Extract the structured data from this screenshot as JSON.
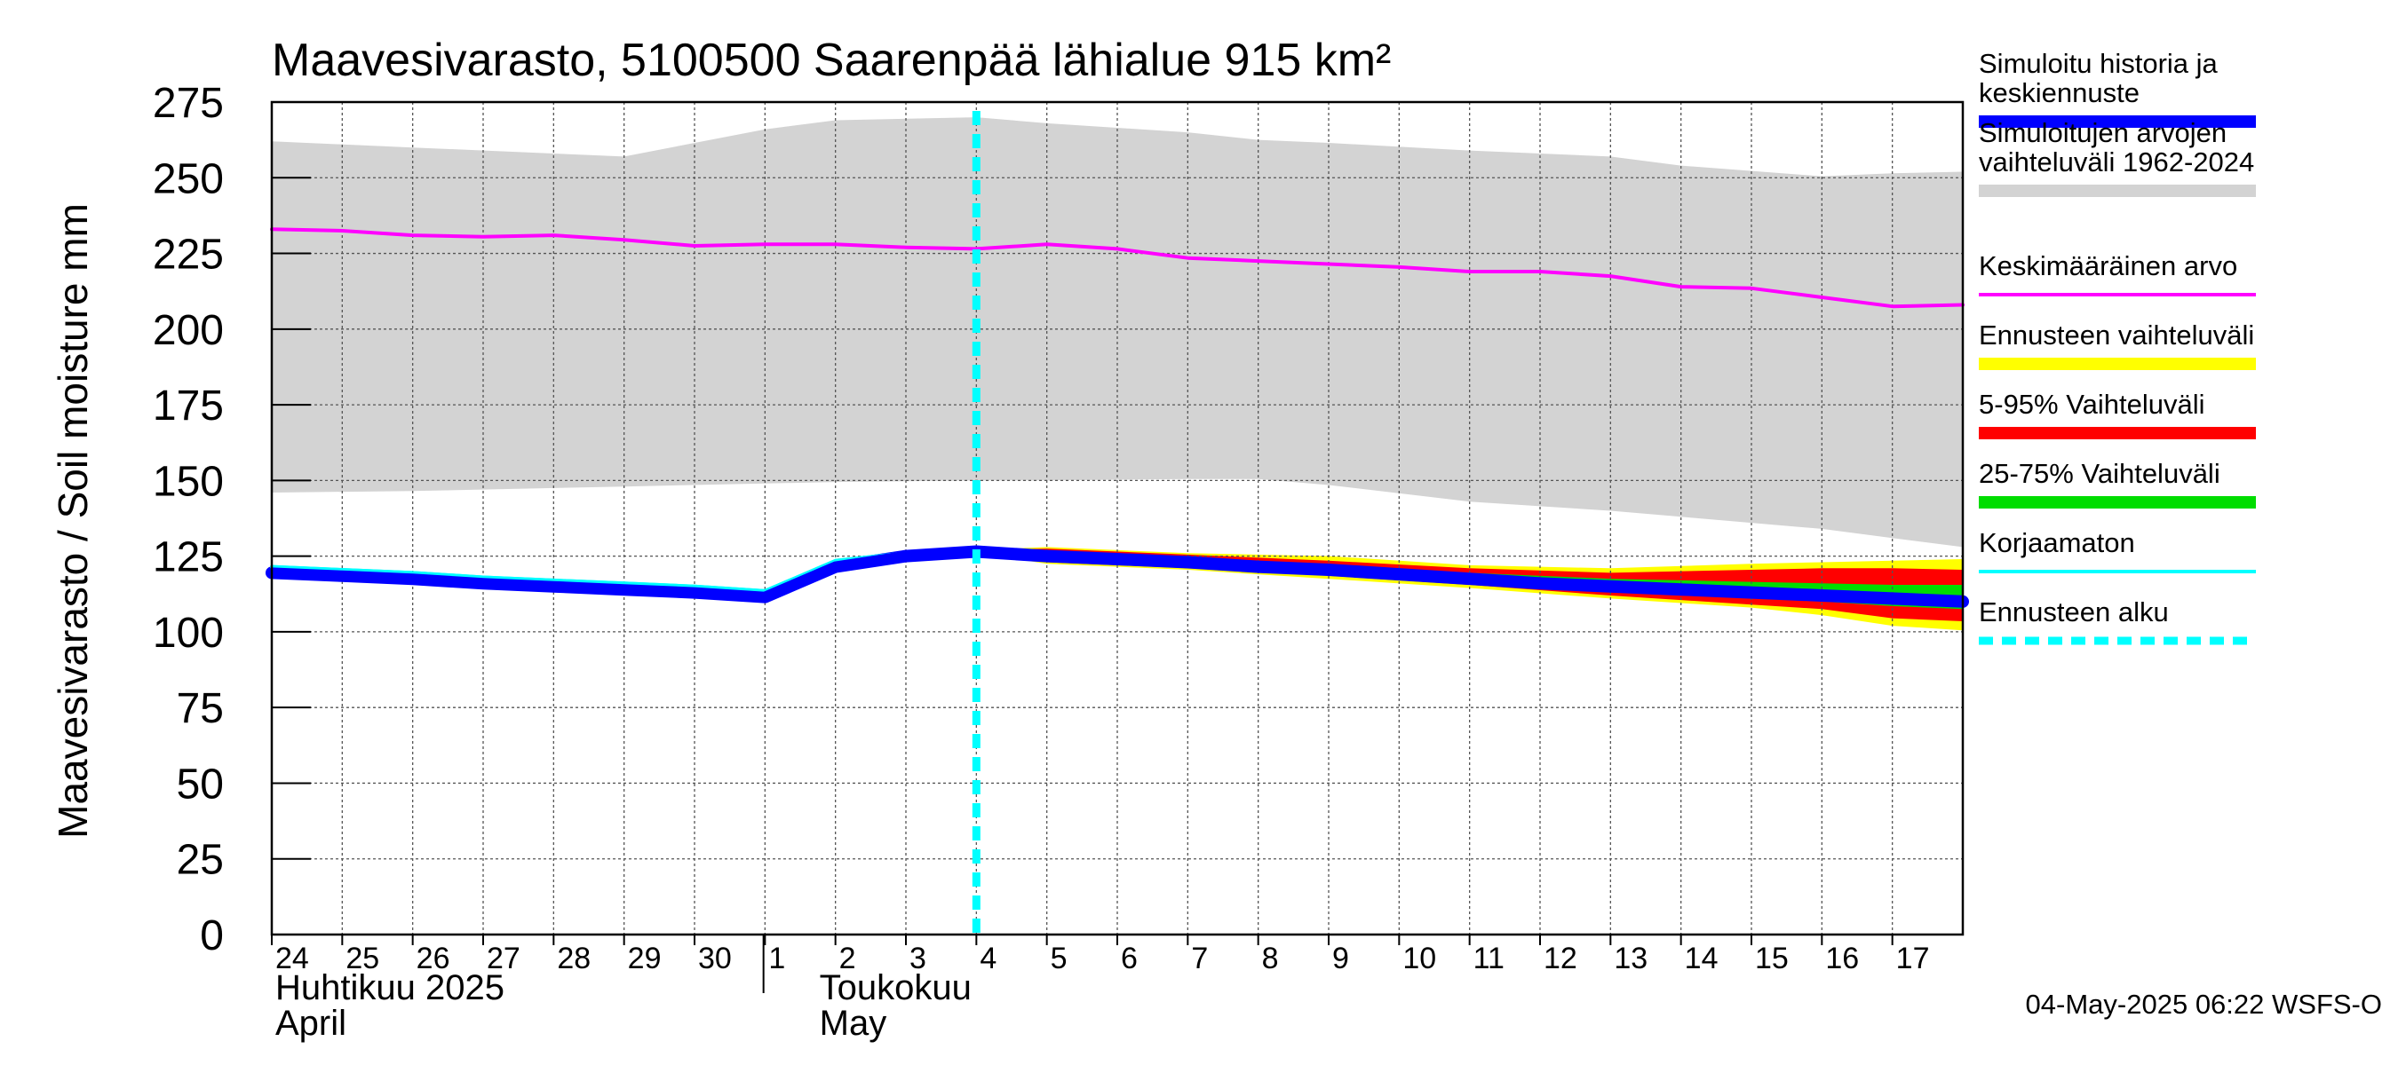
{
  "chart_data": {
    "type": "line",
    "title": "Maavesivarasto, 5100500 Saarenpää lähialue 915 km²",
    "ylabel": "Maavesivarasto / Soil moisture   mm",
    "ylim": [
      0,
      275
    ],
    "yticks": [
      "0",
      "25",
      "50",
      "75",
      "100",
      "125",
      "150",
      "175",
      "200",
      "225",
      "250",
      "275"
    ],
    "x_dates": [
      "2025-04-24",
      "2025-04-25",
      "2025-04-26",
      "2025-04-27",
      "2025-04-28",
      "2025-04-29",
      "2025-04-30",
      "2025-05-01",
      "2025-05-02",
      "2025-05-03",
      "2025-05-04",
      "2025-05-05",
      "2025-05-06",
      "2025-05-07",
      "2025-05-08",
      "2025-05-09",
      "2025-05-10",
      "2025-05-11",
      "2025-05-12",
      "2025-05-13",
      "2025-05-14",
      "2025-05-15",
      "2025-05-16",
      "2025-05-17",
      "2025-05-18"
    ],
    "xtick_labels": [
      "24",
      "25",
      "26",
      "27",
      "28",
      "29",
      "30",
      "1",
      "2",
      "3",
      "4",
      "5",
      "6",
      "7",
      "8",
      "9",
      "10",
      "11",
      "12",
      "13",
      "14",
      "15",
      "16",
      "17"
    ],
    "months": [
      {
        "line1": "Huhtikuu  2025",
        "line2": "April",
        "start": "2025-04-24"
      },
      {
        "line1": "Toukokuu",
        "line2": "May",
        "start": "2025-05-02"
      }
    ],
    "forecast_start": "2025-05-04",
    "grid": true,
    "legend_position": "right",
    "series": [
      {
        "name": "Simuloitu historia ja keskiennuste",
        "color": "#0000ff",
        "style": "thick-line",
        "dates": [
          "2025-04-24",
          "2025-04-25",
          "2025-04-26",
          "2025-04-27",
          "2025-04-28",
          "2025-04-29",
          "2025-04-30",
          "2025-05-01",
          "2025-05-02",
          "2025-05-03",
          "2025-05-04",
          "2025-05-05",
          "2025-05-06",
          "2025-05-07",
          "2025-05-08",
          "2025-05-09",
          "2025-05-10",
          "2025-05-11",
          "2025-05-12",
          "2025-05-13",
          "2025-05-14",
          "2025-05-15",
          "2025-05-16",
          "2025-05-17",
          "2025-05-18"
        ],
        "values": [
          119.5,
          118.5,
          117.5,
          116,
          115,
          114,
          113,
          111.5,
          121.5,
          125,
          126.5,
          125,
          124,
          123,
          121.5,
          120.5,
          119,
          117.5,
          116,
          115,
          114,
          113,
          112,
          111,
          110
        ]
      },
      {
        "name": "Simuloitujen arvojen vaihteluväli 1962-2024",
        "color": "#d3d3d3",
        "style": "band",
        "dates": [
          "2025-04-24",
          "2025-04-26",
          "2025-04-28",
          "2025-04-29",
          "2025-05-01",
          "2025-05-02",
          "2025-05-04",
          "2025-05-05",
          "2025-05-07",
          "2025-05-08",
          "2025-05-09",
          "2025-05-11",
          "2025-05-13",
          "2025-05-14",
          "2025-05-16",
          "2025-05-17",
          "2025-05-18"
        ],
        "lower": [
          146,
          146.5,
          147.5,
          148,
          149,
          149.5,
          150,
          150,
          150.5,
          150.5,
          148.5,
          143,
          140,
          138,
          134,
          131,
          128
        ],
        "upper": [
          262,
          260,
          258,
          257,
          266,
          269,
          270,
          268,
          265,
          262.5,
          261.5,
          259,
          257,
          254,
          250.5,
          251.5,
          252
        ]
      },
      {
        "name": "Keskimääräinen arvo",
        "color": "#ff00ff",
        "style": "line",
        "dates": [
          "2025-04-24",
          "2025-04-25",
          "2025-04-26",
          "2025-04-27",
          "2025-04-28",
          "2025-04-29",
          "2025-04-30",
          "2025-05-01",
          "2025-05-02",
          "2025-05-03",
          "2025-05-04",
          "2025-05-05",
          "2025-05-06",
          "2025-05-07",
          "2025-05-08",
          "2025-05-09",
          "2025-05-10",
          "2025-05-11",
          "2025-05-12",
          "2025-05-13",
          "2025-05-14",
          "2025-05-15",
          "2025-05-16",
          "2025-05-17",
          "2025-05-18"
        ],
        "values": [
          233,
          232.5,
          231,
          230.5,
          231,
          229.5,
          227.5,
          228,
          228,
          227,
          226.5,
          228,
          226.5,
          223.5,
          222.5,
          221.5,
          220.5,
          219,
          219,
          217.5,
          214,
          213.5,
          210.5,
          207.5,
          208
        ]
      },
      {
        "name": "Ennusteen vaihteluväli",
        "color": "#ffff00",
        "style": "band",
        "dates": [
          "2025-05-04",
          "2025-05-05",
          "2025-05-07",
          "2025-05-09",
          "2025-05-11",
          "2025-05-13",
          "2025-05-15",
          "2025-05-16",
          "2025-05-17",
          "2025-05-18"
        ],
        "lower": [
          126,
          122.5,
          120.5,
          117.5,
          114.5,
          111,
          108,
          105.5,
          102,
          100.5
        ],
        "upper": [
          127,
          128,
          126,
          125,
          122,
          121,
          122.5,
          123,
          123.5,
          124
        ]
      },
      {
        "name": "5-95% Vaihteluväli",
        "color": "#ff0000",
        "style": "band",
        "dates": [
          "2025-05-04",
          "2025-05-05",
          "2025-05-07",
          "2025-05-09",
          "2025-05-11",
          "2025-05-13",
          "2025-05-15",
          "2025-05-16",
          "2025-05-17",
          "2025-05-18"
        ],
        "lower": [
          126,
          123,
          121,
          118.5,
          115.5,
          112,
          109,
          107.5,
          104.5,
          103.5
        ],
        "upper": [
          127,
          127.5,
          125.5,
          123.5,
          121,
          119.5,
          120.5,
          121,
          121,
          120.5
        ]
      },
      {
        "name": "25-75% Vaihteluväli",
        "color": "#00dd00",
        "style": "band",
        "dates": [
          "2025-05-04",
          "2025-05-05",
          "2025-05-07",
          "2025-05-09",
          "2025-05-11",
          "2025-05-13",
          "2025-05-15",
          "2025-05-16",
          "2025-05-17",
          "2025-05-18"
        ],
        "lower": [
          126,
          124.5,
          122.5,
          120,
          117,
          114,
          111.5,
          110,
          108.5,
          107.5
        ],
        "upper": [
          127,
          126,
          124.5,
          122,
          119.5,
          117.5,
          116.5,
          116,
          115.5,
          115.5
        ]
      },
      {
        "name": "Korjaamaton",
        "color": "#00ffff",
        "style": "line",
        "dates": [
          "2025-04-24",
          "2025-04-25",
          "2025-04-26",
          "2025-04-27",
          "2025-04-28",
          "2025-04-29",
          "2025-04-30",
          "2025-05-01",
          "2025-05-02",
          "2025-05-03",
          "2025-05-04"
        ],
        "values": [
          121.5,
          120.5,
          119.5,
          118,
          117,
          116,
          115,
          113.5,
          123.5,
          126,
          127
        ]
      },
      {
        "name": "Ennusteen alku",
        "color": "#00ffff",
        "style": "dashed-vertical"
      }
    ]
  },
  "footer": "04-May-2025 06:22 WSFS-O"
}
